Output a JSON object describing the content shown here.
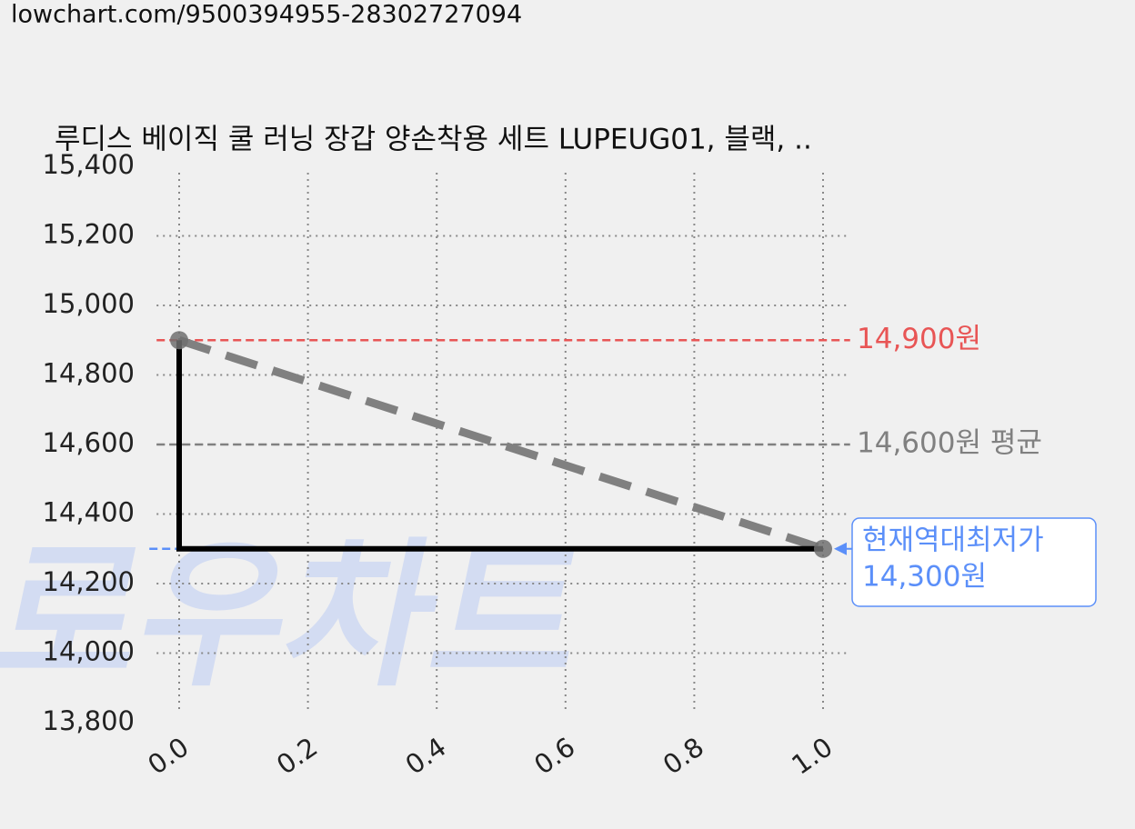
{
  "url": "lowchart.com/9500394955-28302727094",
  "chart_data": {
    "type": "step-price",
    "title": "루디스 베이직 쿨 러닝 장갑 양손착용 세트 LUPEUG01, 블랙, ..",
    "watermark": "로우차트",
    "x": [
      0,
      1
    ],
    "values": [
      14900,
      14300
    ],
    "line_color": "#000000",
    "trend_color": "#808080",
    "marker_color": "#707070",
    "xlim": [
      -0.035,
      1.042
    ],
    "ylim": [
      13800,
      15400
    ],
    "xticks": [
      {
        "value": 0,
        "label": "0.0"
      },
      {
        "value": 0.2,
        "label": "0.2"
      },
      {
        "value": 0.4,
        "label": "0.4"
      },
      {
        "value": 0.6,
        "label": "0.6"
      },
      {
        "value": 0.8,
        "label": "0.8"
      },
      {
        "value": 1,
        "label": "1.0"
      }
    ],
    "yticks": [
      {
        "value": 13800,
        "label": "13,800"
      },
      {
        "value": 14000,
        "label": "14,000"
      },
      {
        "value": 14200,
        "label": "14,200"
      },
      {
        "value": 14400,
        "label": "14,400"
      },
      {
        "value": 14600,
        "label": "14,600"
      },
      {
        "value": 14800,
        "label": "14,800"
      },
      {
        "value": 15000,
        "label": "15,000"
      },
      {
        "value": 15200,
        "label": "15,200"
      },
      {
        "value": 15400,
        "label": "15,400"
      }
    ],
    "grid": true,
    "max_line": {
      "value": 14900,
      "label": "14,900원",
      "color": "#e85555"
    },
    "avg_line": {
      "value": 14600,
      "label": "14,600원 평균",
      "color": "#808080"
    },
    "min_line": {
      "value": 14300,
      "label_lines": [
        "현재역대최저가",
        "14,300원"
      ],
      "color": "#5b8ff9"
    }
  }
}
